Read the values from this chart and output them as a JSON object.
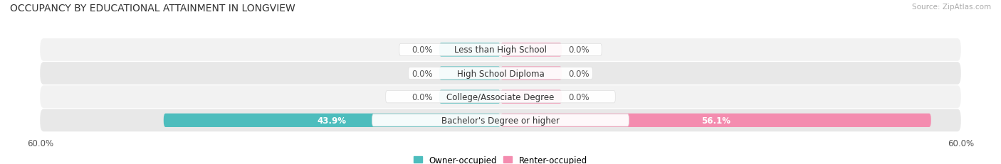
{
  "title": "OCCUPANCY BY EDUCATIONAL ATTAINMENT IN LONGVIEW",
  "source": "Source: ZipAtlas.com",
  "categories": [
    "Less than High School",
    "High School Diploma",
    "College/Associate Degree",
    "Bachelor's Degree or higher"
  ],
  "owner_values": [
    0.0,
    0.0,
    0.0,
    43.9
  ],
  "renter_values": [
    0.0,
    0.0,
    0.0,
    56.1
  ],
  "max_val": 60.0,
  "owner_color": "#4dbdbd",
  "renter_color": "#f48caf",
  "title_fontsize": 10,
  "label_fontsize": 8.5,
  "axis_label_fontsize": 8.5,
  "legend_fontsize": 8.5,
  "bar_height": 0.58,
  "zero_bar_width": 8.0,
  "fig_width": 14.06,
  "fig_height": 2.32,
  "row_colors": [
    "#f2f2f2",
    "#e8e8e8"
  ]
}
